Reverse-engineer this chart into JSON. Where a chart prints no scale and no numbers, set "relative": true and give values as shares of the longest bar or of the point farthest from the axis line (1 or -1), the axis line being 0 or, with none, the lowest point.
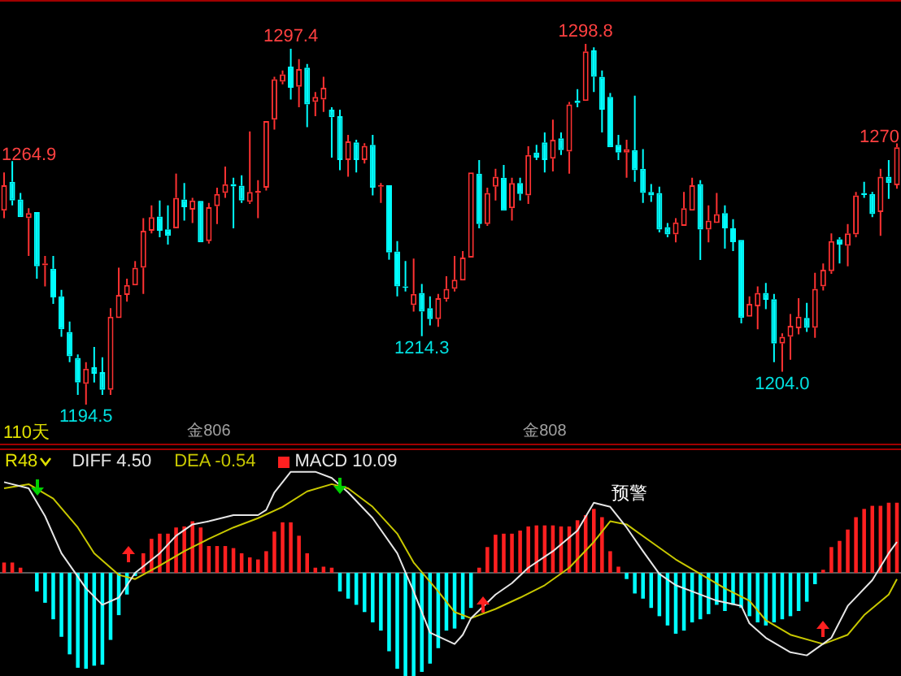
{
  "chart_data": [
    {
      "type": "candlestick",
      "categories": [
        null,
        null,
        null,
        null,
        null,
        null,
        null,
        null,
        null,
        null,
        null,
        null,
        null,
        null,
        null,
        null,
        null,
        null,
        null,
        null,
        null,
        null,
        null,
        null,
        null,
        "金806",
        null,
        null,
        null,
        null,
        null,
        null,
        null,
        null,
        null,
        null,
        null,
        null,
        null,
        null,
        null,
        null,
        null,
        null,
        null,
        null,
        null,
        null,
        null,
        null,
        null,
        null,
        null,
        null,
        null,
        null,
        null,
        null,
        null,
        null,
        null,
        null,
        null,
        null,
        null,
        null,
        "金808",
        null,
        null,
        null,
        null,
        null,
        null,
        null,
        null,
        null,
        null,
        null,
        null,
        null,
        null,
        null,
        null,
        null,
        null,
        null,
        null,
        null,
        null,
        null,
        null,
        null,
        null,
        null,
        null,
        null,
        null,
        null,
        null,
        null,
        null,
        null,
        null,
        null,
        null,
        null,
        null,
        null,
        null,
        null
      ],
      "ohlc": [
        [
          1250.6,
          1261.6,
          1248.4,
          1257.9
        ],
        [
          1258.9,
          1264.9,
          1252.1,
          1253.5
        ],
        [
          1253.8,
          1255.7,
          1248.4,
          1248.7
        ],
        [
          1248.4,
          1251.3,
          1237.5,
          1249.9
        ],
        [
          1250.2,
          1250.6,
          1230.9,
          1234.5
        ],
        [
          1234.8,
          1237.5,
          1228.7,
          1235.3
        ],
        [
          1233.8,
          1237.5,
          1223.6,
          1225.5
        ],
        [
          1225.8,
          1227.7,
          1214.1,
          1216.3
        ],
        [
          1215.5,
          1218.5,
          1206.8,
          1208.5
        ],
        [
          1208.0,
          1209.0,
          1197.3,
          1200.9
        ],
        [
          1200.5,
          1206.8,
          1194.5,
          1204.9
        ],
        [
          1205.3,
          1211.2,
          1200.9,
          1203.4
        ],
        [
          1203.9,
          1208.2,
          1197.3,
          1198.8
        ],
        [
          1198.8,
          1222.4,
          1197.3,
          1219.9
        ],
        [
          1219.5,
          1234.1,
          1219.2,
          1226.2
        ],
        [
          1226.2,
          1230.9,
          1224.3,
          1229.1
        ],
        [
          1229.0,
          1236.0,
          1228.7,
          1234.1
        ],
        [
          1234.1,
          1248.4,
          1226.5,
          1244.8
        ],
        [
          1244.8,
          1252.1,
          1244.0,
          1248.7
        ],
        [
          1248.9,
          1253.5,
          1242.9,
          1244.8
        ],
        [
          1245.2,
          1252.1,
          1240.8,
          1243.3
        ],
        [
          1245.5,
          1261.3,
          1245.5,
          1254.3
        ],
        [
          1253.8,
          1258.6,
          1247.7,
          1251.6
        ],
        [
          1250.9,
          1254.3,
          1247.0,
          1253.5
        ],
        [
          1253.4,
          1253.5,
          1241.1,
          1241.4
        ],
        [
          1241.8,
          1252.8,
          1241.1,
          1251.6
        ],
        [
          1251.9,
          1257.2,
          1246.7,
          1255.4
        ],
        [
          1255.7,
          1263.3,
          1254.3,
          1258.2
        ],
        [
          1258.3,
          1260.1,
          1245.5,
          1257.6
        ],
        [
          1257.8,
          1260.8,
          1252.8,
          1253.5
        ],
        [
          1253.1,
          1273.5,
          1252.5,
          1256.0
        ],
        [
          1255.7,
          1259.4,
          1248.4,
          1256.3
        ],
        [
          1257.2,
          1276.9,
          1256.4,
          1276.5
        ],
        [
          1276.9,
          1289.3,
          1274.0,
          1288.6
        ],
        [
          1287.9,
          1291.1,
          1287.1,
          1290.0
        ],
        [
          1292.2,
          1297.4,
          1282.7,
          1286.1
        ],
        [
          1286.4,
          1294.4,
          1280.5,
          1291.5
        ],
        [
          1291.9,
          1293.0,
          1274.7,
          1281.3
        ],
        [
          1282.0,
          1284.9,
          1277.9,
          1283.5
        ],
        [
          1282.7,
          1289.3,
          1279.1,
          1286.1
        ],
        [
          1279.8,
          1280.5,
          1265.9,
          1277.6
        ],
        [
          1277.9,
          1279.8,
          1262.3,
          1265.2
        ],
        [
          1265.2,
          1272.5,
          1260.4,
          1270.6
        ],
        [
          1270.3,
          1271.1,
          1261.6,
          1265.2
        ],
        [
          1265.2,
          1270.1,
          1264.2,
          1269.3
        ],
        [
          1269.6,
          1272.5,
          1255.0,
          1257.2
        ],
        [
          1257.5,
          1258.6,
          1252.8,
          1257.9
        ],
        [
          1257.9,
          1258.3,
          1236.4,
          1238.5
        ],
        [
          1238.8,
          1241.8,
          1225.8,
          1228.7
        ],
        [
          1228.7,
          1236.0,
          1227.2,
          1228.3
        ],
        [
          1223.3,
          1236.7,
          1221.4,
          1226.5
        ],
        [
          1226.8,
          1229.4,
          1214.3,
          1221.4
        ],
        [
          1222.4,
          1225.8,
          1217.4,
          1219.2
        ],
        [
          1219.2,
          1226.5,
          1217.0,
          1225.3
        ],
        [
          1225.0,
          1231.6,
          1224.3,
          1228.0
        ],
        [
          1228.0,
          1237.5,
          1227.2,
          1230.6
        ],
        [
          1230.4,
          1238.9,
          1230.2,
          1237.0
        ],
        [
          1237.0,
          1261.9,
          1236.7,
          1261.6
        ],
        [
          1261.3,
          1265.2,
          1245.5,
          1246.7
        ],
        [
          1246.7,
          1257.2,
          1246.2,
          1255.7
        ],
        [
          1257.5,
          1262.7,
          1253.5,
          1260.4
        ],
        [
          1260.1,
          1263.8,
          1250.2,
          1250.6
        ],
        [
          1251.3,
          1260.1,
          1247.7,
          1258.6
        ],
        [
          1258.6,
          1260.1,
          1253.5,
          1255.4
        ],
        [
          1255.0,
          1269.2,
          1252.5,
          1266.7
        ],
        [
          1267.4,
          1269.6,
          1265.2,
          1265.9
        ],
        [
          1270.3,
          1273.2,
          1261.6,
          1265.2
        ],
        [
          1265.6,
          1276.9,
          1261.9,
          1271.1
        ],
        [
          1271.5,
          1273.2,
          1266.7,
          1268.1
        ],
        [
          1267.7,
          1282.0,
          1261.3,
          1281.3
        ],
        [
          1282.4,
          1285.7,
          1280.5,
          1281.7
        ],
        [
          1282.3,
          1298.8,
          1282.0,
          1296.6
        ],
        [
          1296.9,
          1297.8,
          1284.9,
          1289.3
        ],
        [
          1289.3,
          1291.1,
          1273.2,
          1279.8
        ],
        [
          1283.5,
          1284.6,
          1268.6,
          1268.9
        ],
        [
          1269.6,
          1272.5,
          1265.2,
          1267.4
        ],
        [
          1267.4,
          1271.1,
          1260.1,
          1268.4
        ],
        [
          1268.1,
          1283.8,
          1258.9,
          1262.3
        ],
        [
          1262.7,
          1268.4,
          1252.8,
          1255.7
        ],
        [
          1256.0,
          1258.3,
          1253.1,
          1255.0
        ],
        [
          1255.7,
          1257.5,
          1244.3,
          1245.1
        ],
        [
          1245.8,
          1247.0,
          1242.9,
          1243.7
        ],
        [
          1243.7,
          1248.4,
          1241.4,
          1247.2
        ],
        [
          1246.2,
          1256.0,
          1245.9,
          1251.3
        ],
        [
          1250.6,
          1260.1,
          1250.2,
          1257.9
        ],
        [
          1258.3,
          1259.4,
          1236.3,
          1245.1
        ],
        [
          1245.1,
          1252.1,
          1241.4,
          1247.7
        ],
        [
          1247.0,
          1255.7,
          1246.7,
          1249.6
        ],
        [
          1249.9,
          1252.1,
          1239.6,
          1245.5
        ],
        [
          1245.5,
          1248.1,
          1238.9,
          1241.5
        ],
        [
          1242.1,
          1242.3,
          1218.0,
          1219.6
        ],
        [
          1219.9,
          1225.8,
          1219.5,
          1223.6
        ],
        [
          1222.9,
          1228.7,
          1216.3,
          1226.8
        ],
        [
          1226.8,
          1229.7,
          1222.1,
          1224.8
        ],
        [
          1225.0,
          1226.5,
          1206.8,
          1212.2
        ],
        [
          1212.2,
          1215.1,
          1204.0,
          1214.1
        ],
        [
          1214.1,
          1220.7,
          1207.5,
          1217.3
        ],
        [
          1216.6,
          1225.3,
          1214.8,
          1219.9
        ],
        [
          1219.6,
          1223.9,
          1215.5,
          1216.7
        ],
        [
          1216.7,
          1232.6,
          1213.8,
          1228.0
        ],
        [
          1228.7,
          1235.3,
          1227.5,
          1233.5
        ],
        [
          1233.1,
          1244.0,
          1232.3,
          1241.8
        ],
        [
          1242.3,
          1242.9,
          1235.3,
          1240.8
        ],
        [
          1240.4,
          1246.7,
          1234.5,
          1244.0
        ],
        [
          1243.7,
          1256.0,
          1242.9,
          1255.0
        ],
        [
          1255.7,
          1258.9,
          1254.3,
          1255.1
        ],
        [
          1255.4,
          1256.0,
          1248.7,
          1249.6
        ],
        [
          1250.2,
          1262.7,
          1243.3,
          1260.4
        ],
        [
          1260.4,
          1265.2,
          1254.0,
          1258.6
        ],
        [
          1257.9,
          1270,
          1256.9,
          1268.9
        ]
      ],
      "colors": [
        "#ff3232",
        "#00ffff",
        "#00ffff",
        "#ff3232",
        "#00ffff",
        "#ff3232",
        "#00ffff",
        "#00ffff",
        "#00ffff",
        "#00ffff",
        "#ff3232",
        "#00ffff",
        "#00ffff",
        "#ff3232",
        "#ff3232",
        "#ff3232",
        "#ff3232",
        "#ff3232",
        "#ff3232",
        "#00ffff",
        "#00ffff",
        "#ff3232",
        "#00ffff",
        "#ff3232",
        "#00ffff",
        "#ff3232",
        "#ff3232",
        "#ff3232",
        "#00ffff",
        "#00ffff",
        "#ff3232",
        "#ff3232",
        "#ff3232",
        "#ff3232",
        "#ff3232",
        "#00ffff",
        "#ff3232",
        "#00ffff",
        "#ff3232",
        "#ff3232",
        "#00ffff",
        "#00ffff",
        "#ff3232",
        "#00ffff",
        "#ff3232",
        "#00ffff",
        "#ff3232",
        "#00ffff",
        "#00ffff",
        "#00ffff",
        "#ff3232",
        "#00ffff",
        "#00ffff",
        "#ff3232",
        "#ff3232",
        "#ff3232",
        "#ff3232",
        "#ff3232",
        "#00ffff",
        "#ff3232",
        "#ff3232",
        "#00ffff",
        "#ff3232",
        "#00ffff",
        "#ff3232",
        "#00ffff",
        "#00ffff",
        "#ff3232",
        "#00ffff",
        "#ff3232",
        "#00ffff",
        "#ff3232",
        "#00ffff",
        "#00ffff",
        "#00ffff",
        "#00ffff",
        "#ff3232",
        "#00ffff",
        "#00ffff",
        "#00ffff",
        "#00ffff",
        "#00ffff",
        "#ff3232",
        "#ff3232",
        "#ff3232",
        "#00ffff",
        "#ff3232",
        "#ff3232",
        "#00ffff",
        "#00ffff",
        "#00ffff",
        "#ff3232",
        "#ff3232",
        "#00ffff",
        "#00ffff",
        "#ff3232",
        "#ff3232",
        "#ff3232",
        "#00ffff",
        "#ff3232",
        "#ff3232",
        "#ff3232",
        "#00ffff",
        "#ff3232",
        "#ff3232",
        "#00ffff",
        "#00ffff",
        "#ff3232",
        "#00ffff",
        "#ff3232"
      ],
      "annotations": [
        "110天",
        "1264.9",
        {
          "text": "1194.5",
          "y": 1194.5
        },
        {
          "text": "1297.4",
          "y": 1297.4
        },
        {
          "text": "1214.3",
          "y": 1214.3
        },
        {
          "text": "1298.8",
          "y": 1298.8
        },
        {
          "text": "1204.0",
          "y": 1204.0
        },
        "1270"
      ]
    },
    {
      "type": "bar",
      "relative": true,
      "legend": "top left",
      "marker": "none",
      "categories": [
        null,
        null,
        null,
        null,
        null,
        null,
        null,
        null,
        null,
        null,
        null,
        null,
        null,
        null,
        null,
        null,
        null,
        null,
        null,
        null,
        null,
        null,
        null,
        null,
        null,
        null,
        null,
        null,
        null,
        null,
        null,
        null,
        null,
        null,
        null,
        null,
        null,
        null,
        null,
        null,
        null,
        null,
        null,
        null,
        null,
        null,
        null,
        null,
        null,
        null,
        null,
        null,
        null,
        null,
        null,
        null,
        null,
        null,
        null,
        null,
        null,
        null,
        null,
        null,
        null,
        null,
        null,
        null,
        null,
        null,
        null,
        null,
        null,
        null,
        null,
        null,
        null,
        null,
        null,
        null,
        null,
        null,
        null,
        null,
        null,
        null,
        null,
        null,
        null,
        null,
        null,
        null,
        null,
        null,
        null,
        null,
        null,
        null,
        null,
        null,
        null,
        null,
        null,
        null,
        null,
        null,
        null,
        null,
        null,
        null
      ],
      "series": [
        {
          "name": "DIFF 4.50",
          "type": "line",
          "color": "#e6e6e6",
          "values": [
            0.88,
            null,
            null,
            0.82,
            null,
            0.55,
            null,
            0.19,
            null,
            null,
            -0.15,
            null,
            -0.31,
            null,
            -0.24,
            null,
            0,
            null,
            null,
            0.19,
            null,
            0.36,
            null,
            0.47,
            null,
            0.5,
            null,
            null,
            0.56,
            null,
            null,
            0.56,
            0.61,
            0.78,
            null,
            0.98,
            null,
            null,
            0.98,
            null,
            0.92,
            null,
            0.78,
            null,
            null,
            0.53,
            null,
            null,
            0.19,
            null,
            -0.18,
            null,
            -0.58,
            null,
            null,
            -0.69,
            -0.6,
            -0.44,
            null,
            null,
            -0.21,
            null,
            -0.1,
            null,
            0.05,
            null,
            null,
            0.21,
            null,
            null,
            0.41,
            null,
            0.68,
            null,
            0.64,
            null,
            0.44,
            null,
            0.21,
            null,
            -0.01,
            null,
            -0.12,
            null,
            -0.18,
            null,
            null,
            -0.27,
            null,
            null,
            -0.32,
            -0.49,
            null,
            -0.63,
            null,
            null,
            -0.77,
            null,
            -0.8,
            null,
            null,
            -0.63,
            null,
            -0.32,
            null,
            null,
            -0.07,
            null,
            0.19,
            0.3
          ]
        },
        {
          "name": "DEA -0.54",
          "type": "line",
          "color": "#c8c800",
          "values": [
            0.82,
            null,
            null,
            0.86,
            null,
            null,
            0.72,
            null,
            null,
            0.44,
            null,
            0.19,
            null,
            null,
            -0.02,
            null,
            -0.06,
            null,
            null,
            0.07,
            null,
            null,
            0.21,
            null,
            null,
            0.33,
            null,
            null,
            0.44,
            null,
            null,
            0.53,
            null,
            null,
            0.64,
            null,
            null,
            0.79,
            null,
            null,
            0.86,
            null,
            0.82,
            null,
            null,
            0.64,
            null,
            null,
            0.38,
            null,
            0.1,
            null,
            null,
            -0.18,
            null,
            -0.38,
            null,
            -0.44,
            null,
            null,
            -0.35,
            null,
            null,
            -0.24,
            null,
            null,
            -0.12,
            null,
            null,
            0.05,
            null,
            null,
            0.3,
            null,
            0.5,
            null,
            0.47,
            null,
            null,
            0.3,
            null,
            null,
            0.13,
            null,
            null,
            -0.01,
            null,
            null,
            -0.15,
            null,
            null,
            -0.27,
            null,
            -0.46,
            null,
            null,
            -0.6,
            null,
            null,
            null,
            -0.69,
            null,
            null,
            -0.6,
            null,
            -0.41,
            null,
            null,
            -0.21,
            -0.06
          ]
        },
        {
          "name": "MACD 10.09",
          "type": "bar",
          "values": [
            0.1,
            0.1,
            0.05,
            0,
            -0.18,
            -0.29,
            -0.45,
            -0.62,
            -0.79,
            -0.92,
            -0.93,
            -0.9,
            -0.89,
            -0.65,
            -0.41,
            -0.21,
            -0.03,
            0.19,
            0.33,
            0.38,
            0.38,
            0.44,
            0.45,
            0.5,
            0.44,
            0.26,
            0.26,
            0.26,
            0.24,
            0.19,
            0.15,
            0.13,
            0.21,
            0.4,
            0.49,
            0.49,
            0.36,
            0.19,
            0.05,
            0.06,
            0.05,
            -0.18,
            -0.25,
            -0.31,
            -0.38,
            -0.48,
            -0.56,
            -0.76,
            -0.93,
            -1,
            -1,
            -0.96,
            -0.88,
            -0.73,
            -0.56,
            -0.54,
            -0.45,
            -0.34,
            0.05,
            0.25,
            0.37,
            0.38,
            0.38,
            0.41,
            0.45,
            0.46,
            0.46,
            0.46,
            0.45,
            0.45,
            0.51,
            0.56,
            0.62,
            0.54,
            0.21,
            0.06,
            -0.06,
            -0.2,
            -0.25,
            -0.34,
            -0.42,
            -0.51,
            -0.59,
            -0.56,
            -0.48,
            -0.45,
            -0.4,
            -0.31,
            -0.37,
            -0.31,
            -0.34,
            -0.42,
            -0.48,
            -0.51,
            -0.48,
            -0.45,
            -0.42,
            -0.37,
            -0.28,
            -0.11,
            0.03,
            0.25,
            0.31,
            0.42,
            0.54,
            0.62,
            0.65,
            0.65,
            0.68,
            0.68
          ],
          "colors": [
            "#ff2020",
            "#ff2020",
            "#ff2020",
            "#ff2020",
            "#00ffff",
            "#00ffff",
            "#00ffff",
            "#00ffff",
            "#00ffff",
            "#00ffff",
            "#00ffff",
            "#00ffff",
            "#00ffff",
            "#00ffff",
            "#00ffff",
            "#00ffff",
            "#00ffff",
            "#ff2020",
            "#ff2020",
            "#ff2020",
            "#ff2020",
            "#ff2020",
            "#ff2020",
            "#ff2020",
            "#ff2020",
            "#ff2020",
            "#ff2020",
            "#ff2020",
            "#ff2020",
            "#ff2020",
            "#ff2020",
            "#ff2020",
            "#ff2020",
            "#ff2020",
            "#ff2020",
            "#ff2020",
            "#ff2020",
            "#ff2020",
            "#ff2020",
            "#ff2020",
            "#ff2020",
            "#00ffff",
            "#00ffff",
            "#00ffff",
            "#00ffff",
            "#00ffff",
            "#00ffff",
            "#00ffff",
            "#00ffff",
            "#00ffff",
            "#00ffff",
            "#00ffff",
            "#00ffff",
            "#00ffff",
            "#00ffff",
            "#00ffff",
            "#00ffff",
            "#00ffff",
            "#ff2020",
            "#ff2020",
            "#ff2020",
            "#ff2020",
            "#ff2020",
            "#ff2020",
            "#ff2020",
            "#ff2020",
            "#ff2020",
            "#ff2020",
            "#ff2020",
            "#ff2020",
            "#ff2020",
            "#ff2020",
            "#ff2020",
            "#ff2020",
            "#ff2020",
            "#ff2020",
            "#00ffff",
            "#00ffff",
            "#00ffff",
            "#00ffff",
            "#00ffff",
            "#00ffff",
            "#00ffff",
            "#00ffff",
            "#00ffff",
            "#00ffff",
            "#00ffff",
            "#00ffff",
            "#00ffff",
            "#00ffff",
            "#00ffff",
            "#00ffff",
            "#00ffff",
            "#00ffff",
            "#00ffff",
            "#00ffff",
            "#00ffff",
            "#00ffff",
            "#00ffff",
            "#00ffff",
            "#ff2020",
            "#ff2020",
            "#ff2020",
            "#ff2020",
            "#ff2020",
            "#ff2020",
            "#ff2020",
            "#ff2020",
            "#ff2020",
            "#ff2020"
          ]
        }
      ],
      "annotations": [
        "R48",
        "预警"
      ]
    }
  ]
}
